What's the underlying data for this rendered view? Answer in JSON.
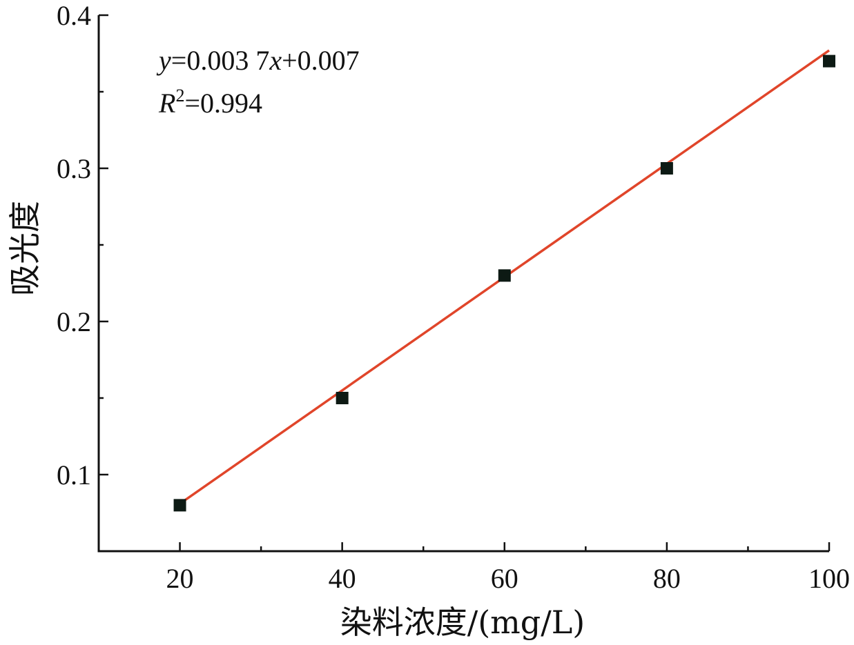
{
  "chart_data": {
    "type": "scatter",
    "xlabel": "染料浓度/(mg/L)",
    "ylabel": "吸光度",
    "xlim": [
      10,
      100
    ],
    "ylim": [
      0.05,
      0.4
    ],
    "x_ticks": [
      20,
      40,
      60,
      80,
      100
    ],
    "x_tick_labels": [
      "20",
      "40",
      "60",
      "80",
      "100"
    ],
    "x_minor_ticks": [
      30,
      50,
      70,
      90
    ],
    "y_ticks": [
      0.1,
      0.2,
      0.3,
      0.4
    ],
    "y_tick_labels": [
      "0.1",
      "0.2",
      "0.3",
      "0.4"
    ],
    "y_minor_ticks": [
      0.15,
      0.25,
      0.35
    ],
    "grid": false,
    "points": {
      "x": [
        20,
        40,
        60,
        80,
        100
      ],
      "y": [
        0.08,
        0.15,
        0.23,
        0.3,
        0.37
      ]
    },
    "fit_line": {
      "slope": 0.0037,
      "intercept": 0.007,
      "x_range": [
        20,
        100
      ]
    },
    "annotations": {
      "equation": {
        "y_var": "y",
        "eq1": "=0.003 7",
        "x_var": "x",
        "eq2": "+0.007"
      },
      "r_squared": {
        "var": "R",
        "sup": "2",
        "value": "=0.994"
      }
    },
    "colors": {
      "marker": "#0d1a14",
      "fit_line": "#e0452a",
      "axis": "#111111"
    }
  }
}
